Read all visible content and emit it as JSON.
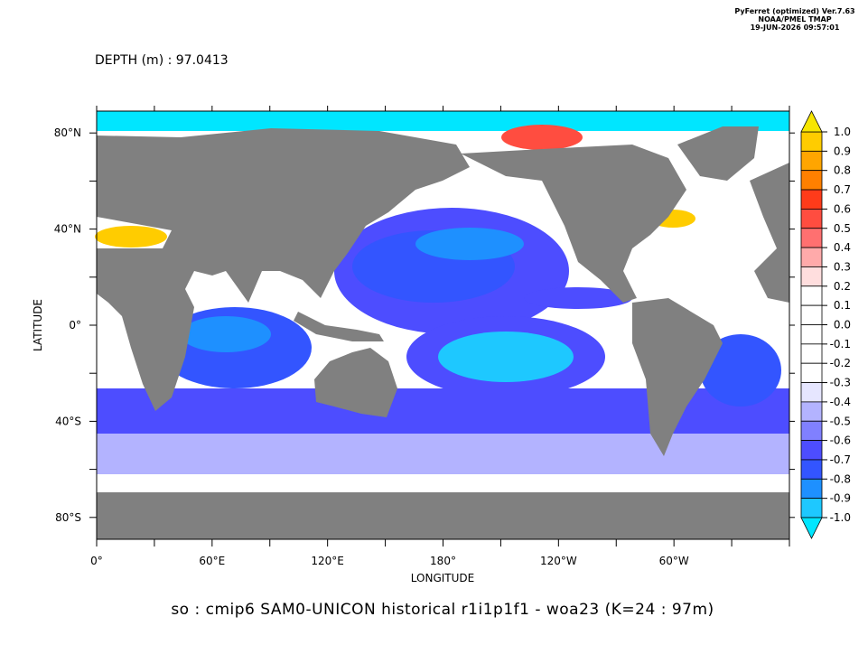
{
  "header": {
    "software": "PyFerret (optimized) Ver.7.63",
    "organization": "NOAA/PMEL TMAP",
    "timestamp": "19-JUN-2026 09:57:01",
    "depth": "DEPTH (m) : 97.0413"
  },
  "axes": {
    "x_title": "LONGITUDE",
    "y_title": "LATITUDE",
    "x_labels": [
      "0°",
      "60°E",
      "120°E",
      "180°",
      "120°W",
      "60°W"
    ],
    "y_labels": [
      "80°N",
      "40°N",
      "0°",
      "40°S",
      "80°S"
    ]
  },
  "colorbar": {
    "labels": [
      "1.0",
      "0.9",
      "0.8",
      "0.7",
      "0.6",
      "0.5",
      "0.4",
      "0.3",
      "0.2",
      "0.1",
      "0.0",
      "-0.1",
      "-0.2",
      "-0.3",
      "-0.4",
      "-0.5",
      "-0.6",
      "-0.7",
      "-0.8",
      "-0.9",
      "-1.0"
    ],
    "colors": [
      "#ffcc00",
      "#ffa500",
      "#ff8000",
      "#ff3b1a",
      "#ff4d40",
      "#ff7070",
      "#ffaaaa",
      "#ffdede",
      "#ffffff",
      "#ffffff",
      "#ffffff",
      "#ffffff",
      "#ffffff",
      "#e6e6ff",
      "#b3b3ff",
      "#8080ff",
      "#4d4dff",
      "#3355ff",
      "#1e90ff",
      "#1ec8ff"
    ],
    "over_color": "#f7e600",
    "under_color": "#00e6ff"
  },
  "footer": "so : cmip6 SAM0-UNICON historical r1i1p1f1 - woa23  (K=24 : 97m)"
}
